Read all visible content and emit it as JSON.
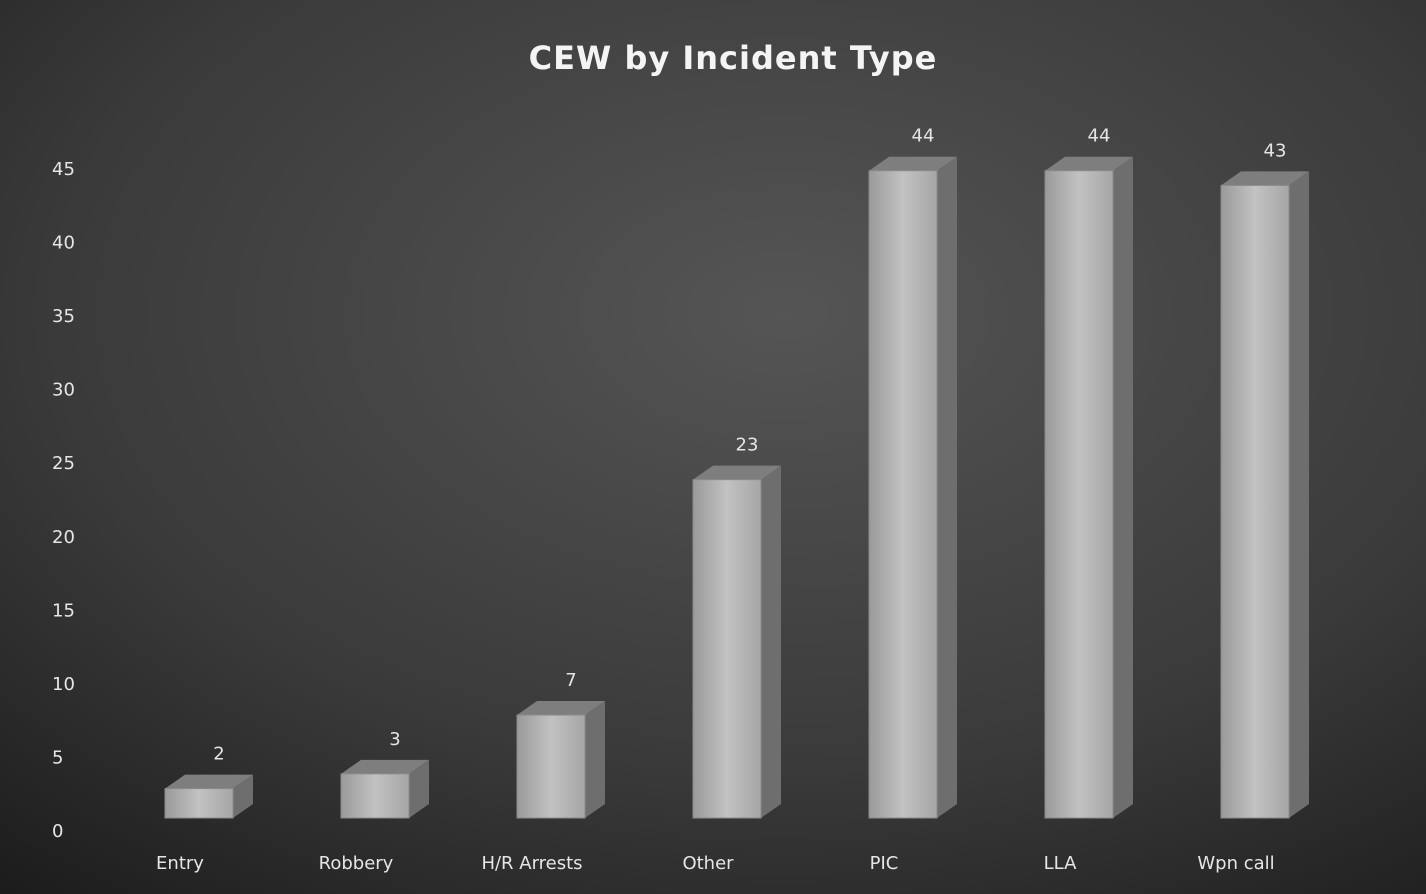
{
  "chart_data": {
    "type": "bar3d",
    "title": "CEW by Incident Type",
    "categories": [
      "Entry",
      "Robbery",
      "H/R Arrests",
      "Other",
      "PIC",
      "LLA",
      "Wpn call"
    ],
    "values": [
      2,
      3,
      7,
      23,
      44,
      44,
      43
    ],
    "color": "#b4b4b4",
    "ylim": [
      0,
      45
    ],
    "yticks": [
      0,
      5,
      10,
      15,
      20,
      25,
      30,
      35,
      40,
      45
    ],
    "grid": false
  }
}
